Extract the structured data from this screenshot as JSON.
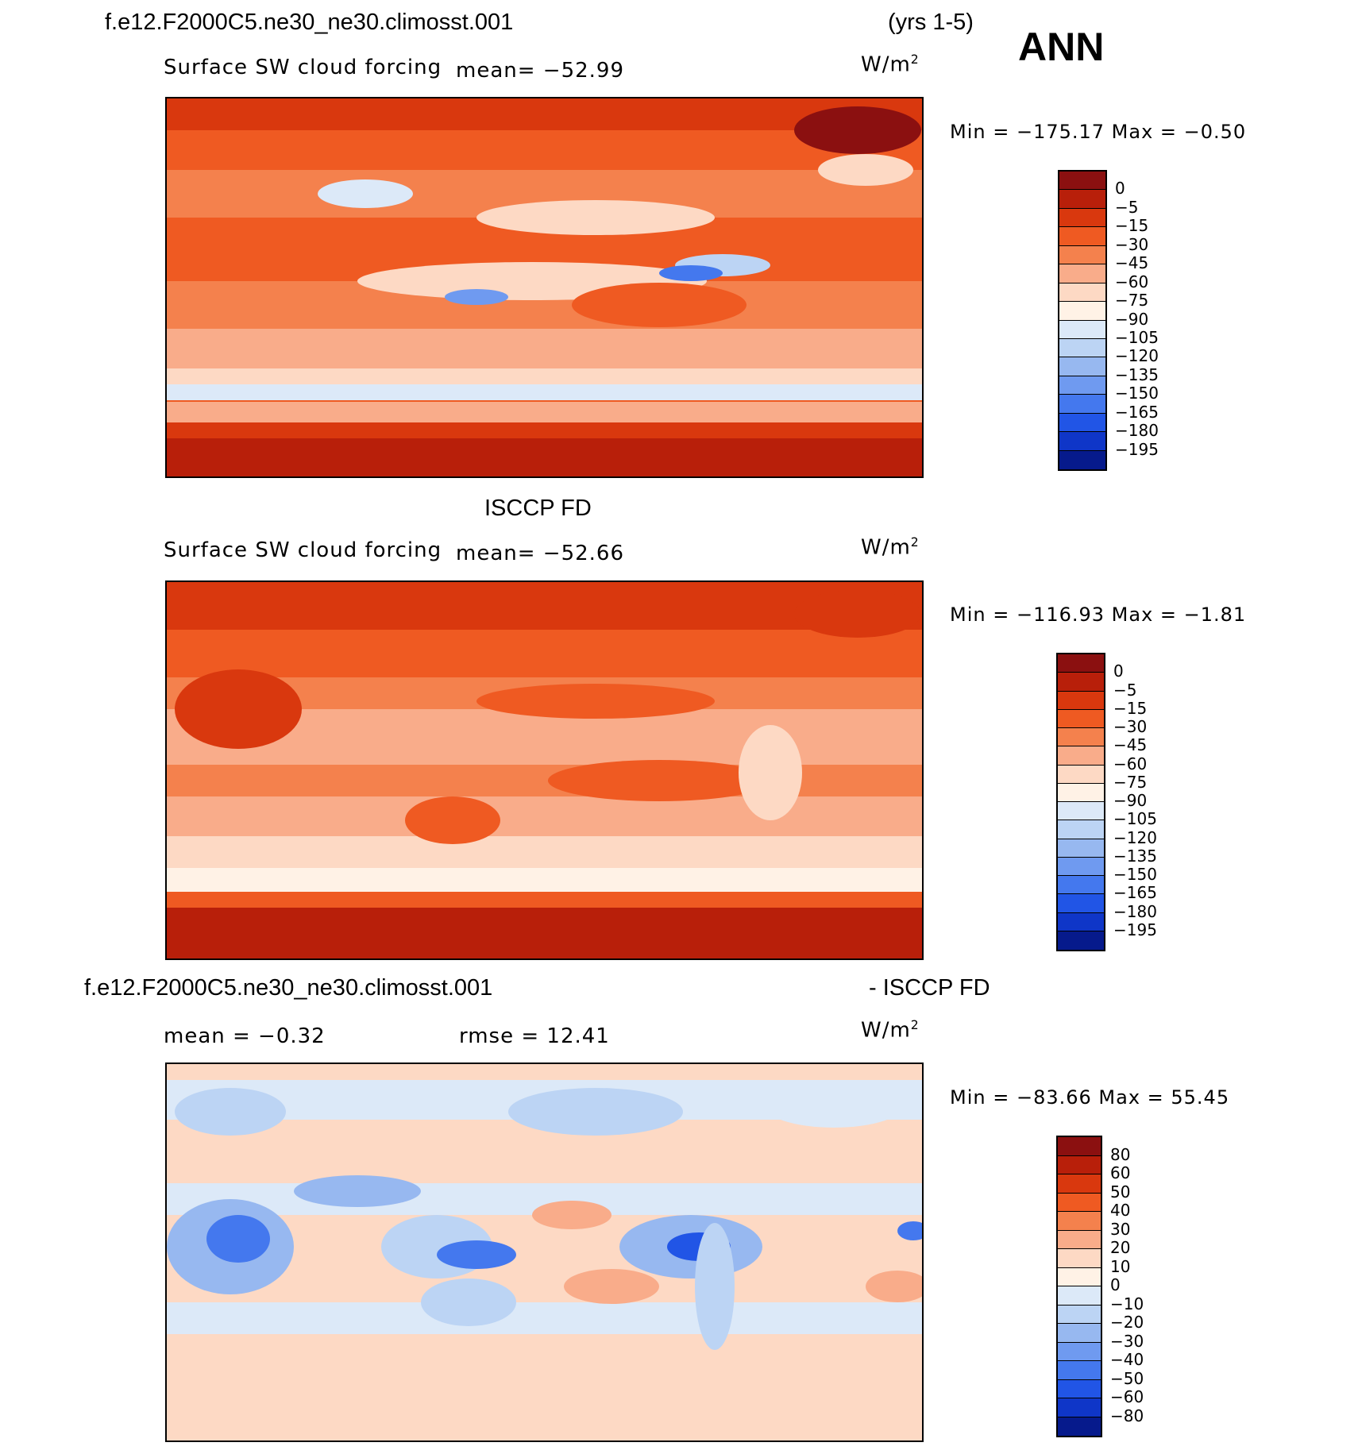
{
  "header": {
    "case_name": "f.e12.F2000C5.ne30_ne30.climosst.001",
    "years": "(yrs 1-5)",
    "season": "ANN"
  },
  "panels": [
    {
      "id": "model",
      "title": "",
      "variable": "Surface SW cloud forcing",
      "stat_text": "mean= −52.99",
      "units_base": "W/m",
      "units_exp": "2",
      "minmax": "Min = −175.17 Max = −0.50",
      "colorbar": {
        "colors": [
          "#8b1010",
          "#b81f0a",
          "#d9380e",
          "#ef5a22",
          "#f4814d",
          "#f9ac8a",
          "#fdd9c4",
          "#fff2e6",
          "#dce9f8",
          "#bcd4f4",
          "#97b8f0",
          "#6f9af0",
          "#4478ee",
          "#2155e6",
          "#0f36c8",
          "#061a8c"
        ],
        "labels": [
          "0",
          "−5",
          "−15",
          "−30",
          "−45",
          "−60",
          "−75",
          "−90",
          "−105",
          "−120",
          "−135",
          "−150",
          "−165",
          "−180",
          "−195"
        ]
      }
    },
    {
      "id": "obs",
      "title": "ISCCP FD",
      "variable": "Surface SW cloud forcing",
      "stat_text": "mean= −52.66",
      "units_base": "W/m",
      "units_exp": "2",
      "minmax": "Min = −116.93 Max = −1.81",
      "colorbar": {
        "colors": [
          "#8b1010",
          "#b81f0a",
          "#d9380e",
          "#ef5a22",
          "#f4814d",
          "#f9ac8a",
          "#fdd9c4",
          "#fff2e6",
          "#dce9f8",
          "#bcd4f4",
          "#97b8f0",
          "#6f9af0",
          "#4478ee",
          "#2155e6",
          "#0f36c8",
          "#061a8c"
        ],
        "labels": [
          "0",
          "−5",
          "−15",
          "−30",
          "−45",
          "−60",
          "−75",
          "−90",
          "−105",
          "−120",
          "−135",
          "−150",
          "−165",
          "−180",
          "−195"
        ]
      }
    },
    {
      "id": "diff",
      "title_left": "f.e12.F2000C5.ne30_ne30.climosst.001",
      "title_right": "- ISCCP FD",
      "mean_text": "mean = −0.32",
      "rmse_text": "rmse = 12.41",
      "units_base": "W/m",
      "units_exp": "2",
      "minmax": "Min = −83.66 Max = 55.45",
      "colorbar": {
        "colors": [
          "#8b1010",
          "#b81f0a",
          "#d9380e",
          "#ef5a22",
          "#f4814d",
          "#f9ac8a",
          "#fdd9c4",
          "#fff2e6",
          "#dce9f8",
          "#bcd4f4",
          "#97b8f0",
          "#6f9af0",
          "#4478ee",
          "#2155e6",
          "#0f36c8",
          "#061a8c"
        ],
        "labels": [
          "80",
          "60",
          "50",
          "40",
          "30",
          "20",
          "10",
          "0",
          "−10",
          "−20",
          "−30",
          "−40",
          "−50",
          "−60",
          "−80"
        ]
      }
    }
  ]
}
